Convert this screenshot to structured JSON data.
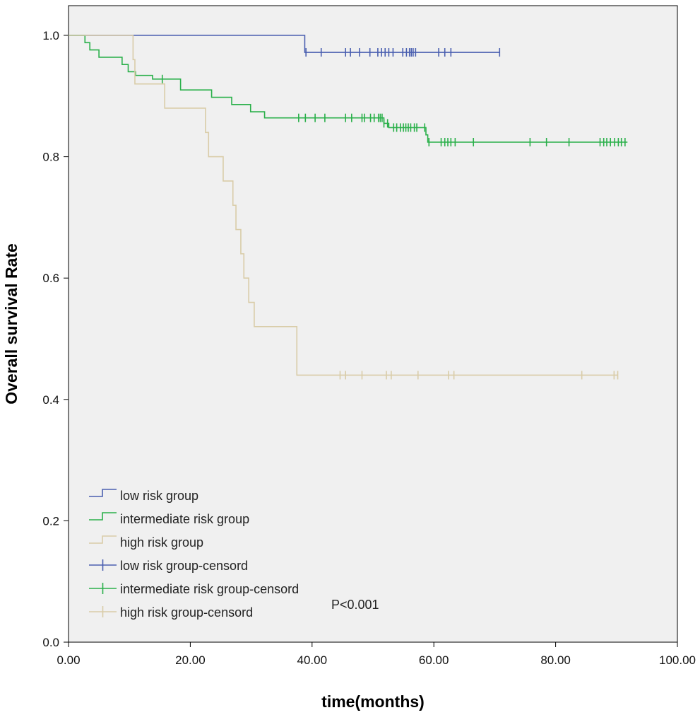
{
  "chart_data": {
    "type": "line",
    "subtype": "kaplan-meier",
    "title": "",
    "xlabel": "time(months)",
    "ylabel": "Overall survival Rate",
    "xlim": [
      0,
      100
    ],
    "ylim": [
      0,
      1
    ],
    "xticks": [
      0,
      20,
      40,
      60,
      80,
      100
    ],
    "xtick_labels": [
      "0.00",
      "20.00",
      "40.00",
      "60.00",
      "80.00",
      "100.00"
    ],
    "yticks": [
      0,
      0.2,
      0.4,
      0.6,
      0.8,
      1.0
    ],
    "ytick_labels": [
      "0.0",
      "0.2",
      "0.4",
      "0.6",
      "0.8",
      "1.0"
    ],
    "grid": false,
    "legend_position": "bottom-left",
    "annotation": "P<0.001",
    "series": [
      {
        "name": "low risk group",
        "censor_name": "low risk group-censord",
        "color": "#4a5fb0",
        "steps": [
          [
            0,
            1.0
          ],
          [
            38.8,
            0.972
          ],
          [
            70.8,
            0.972
          ]
        ],
        "censored": [
          39,
          41.5,
          45.5,
          46.3,
          47.8,
          49.5,
          50.8,
          51.4,
          52.0,
          52.6,
          53.3,
          54.9,
          55.5,
          56.0,
          56.3,
          56.6,
          57.0,
          60.8,
          61.8,
          62.8,
          70.8
        ]
      },
      {
        "name": "intermediate risk group",
        "censor_name": "intermediate risk group-censord",
        "color": "#2ab04a",
        "steps": [
          [
            0,
            1.0
          ],
          [
            2.7,
            0.988
          ],
          [
            3.5,
            0.976
          ],
          [
            5.0,
            0.964
          ],
          [
            8.8,
            0.952
          ],
          [
            9.8,
            0.94
          ],
          [
            11.0,
            0.934
          ],
          [
            13.8,
            0.928
          ],
          [
            18.4,
            0.91
          ],
          [
            23.5,
            0.898
          ],
          [
            26.8,
            0.886
          ],
          [
            29.9,
            0.874
          ],
          [
            32.2,
            0.864
          ],
          [
            51.8,
            0.855
          ],
          [
            52.6,
            0.848
          ],
          [
            58.7,
            0.836
          ],
          [
            59.0,
            0.824
          ],
          [
            91.8,
            0.824
          ]
        ],
        "censored": [
          15.4,
          37.8,
          38.9,
          40.5,
          42.1,
          45.5,
          46.5,
          48.2,
          48.6,
          49.6,
          50.2,
          50.9,
          51.2,
          51.5,
          51.8,
          52.4,
          53.4,
          53.9,
          54.5,
          55.0,
          55.4,
          55.8,
          56.2,
          56.8,
          57.2,
          58.5,
          59.2,
          61.2,
          61.8,
          62.3,
          62.8,
          63.5,
          66.5,
          75.8,
          78.5,
          82.2,
          87.3,
          87.9,
          88.4,
          89.0,
          89.7,
          90.3,
          90.8,
          91.4
        ]
      },
      {
        "name": "high risk group",
        "censor_name": "high risk group-censord",
        "color": "#d9cca8",
        "steps": [
          [
            0,
            1.0
          ],
          [
            10.6,
            0.96
          ],
          [
            10.9,
            0.92
          ],
          [
            15.8,
            0.88
          ],
          [
            16.1,
            0.88
          ],
          [
            22.5,
            0.84
          ],
          [
            23.0,
            0.8
          ],
          [
            25.4,
            0.76
          ],
          [
            27.0,
            0.72
          ],
          [
            27.5,
            0.68
          ],
          [
            28.3,
            0.64
          ],
          [
            28.8,
            0.6
          ],
          [
            29.6,
            0.56
          ],
          [
            30.5,
            0.52
          ],
          [
            37.5,
            0.44
          ],
          [
            90.2,
            0.44
          ]
        ],
        "censored": [
          44.6,
          45.5,
          48.2,
          52.2,
          53.0,
          57.4,
          62.4,
          63.3,
          84.3,
          89.6,
          90.2
        ]
      }
    ]
  }
}
